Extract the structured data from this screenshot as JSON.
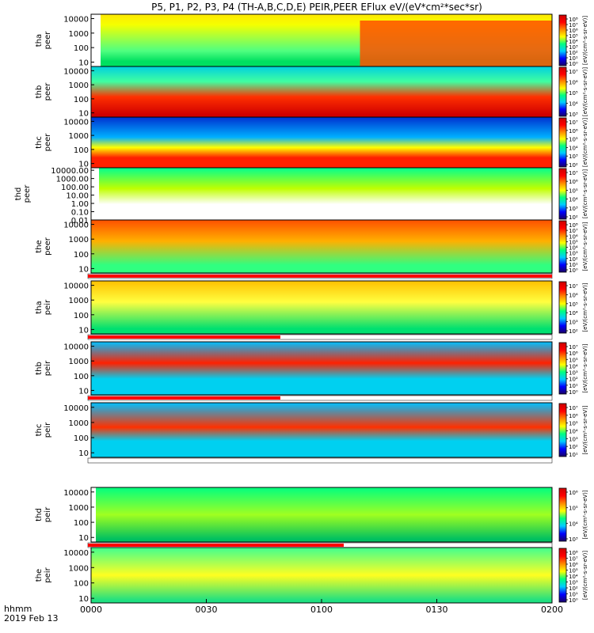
{
  "chart_data": {
    "type": "heatmap",
    "title": "P5, P1, P2, P3, P4 (TH-A,B,C,D,E) PEIR,PEER EFlux eV/(eV*cm²*sec*sr)",
    "date": "2019 Feb 13",
    "time_axis": {
      "label": "hhmm",
      "ticks": [
        "0000",
        "0030",
        "0100",
        "0130",
        "0200"
      ],
      "range_minutes": [
        0,
        120
      ]
    },
    "colorbar_unit": "[eV/(cm²-s-sr-eV)]",
    "colormap": [
      "#1a0066",
      "#0000ff",
      "#00ccff",
      "#00ff80",
      "#ffff00",
      "#ff8800",
      "#ff0000",
      "#cc0000"
    ],
    "panels": [
      {
        "name": "tha peer",
        "ylabel": [
          "tha",
          "peer"
        ],
        "yticks": [
          "10000",
          "1000",
          "100",
          "10"
        ],
        "yrange": [
          5,
          20000
        ],
        "zticks": [
          "10⁸",
          "10⁷",
          "10⁶",
          "10⁵",
          "10⁴",
          "10³",
          "10²",
          "10¹",
          "10⁰"
        ]
      },
      {
        "name": "thb peer",
        "ylabel": [
          "thb",
          "peer"
        ],
        "yticks": [
          "10000",
          "1000",
          "100",
          "10"
        ],
        "yrange": [
          5,
          20000
        ],
        "zticks": [
          "10⁷",
          "10⁶",
          "10⁵",
          "10⁴",
          "10³"
        ]
      },
      {
        "name": "thc peer",
        "ylabel": [
          "thc",
          "peer"
        ],
        "yticks": [
          "10000",
          "1000",
          "100",
          "10"
        ],
        "yrange": [
          5,
          20000
        ],
        "zticks": [
          "10⁷",
          "10⁶",
          "10⁵",
          "10⁴",
          "10³",
          "10²"
        ]
      },
      {
        "name": "thd peer",
        "ylabel": [
          "thd",
          "peer"
        ],
        "yticks": [
          "10000.00",
          "1000.00",
          "100.00",
          "10.00",
          "1.00",
          "0.10",
          "0.01"
        ],
        "yrange": [
          0.01,
          20000
        ],
        "zticks": [
          "10⁷",
          "10⁶",
          "10⁵",
          "10⁴",
          "10³",
          "10²"
        ]
      },
      {
        "name": "the peer",
        "ylabel": [
          "the",
          "peer"
        ],
        "yticks": [
          "10000",
          "1000",
          "100",
          "10"
        ],
        "yrange": [
          5,
          20000
        ],
        "zticks": [
          "10⁸",
          "10⁷",
          "10⁶",
          "10⁵",
          "10⁴",
          "10³",
          "10²",
          "10¹",
          "10⁰"
        ]
      },
      {
        "name": "tha peir",
        "ylabel": [
          "tha",
          "peir"
        ],
        "yticks": [
          "10000",
          "1000",
          "100",
          "10"
        ],
        "yrange": [
          5,
          20000
        ],
        "zticks": [
          "10⁷",
          "10⁶",
          "10⁵",
          "10⁴",
          "10³",
          "10²"
        ]
      },
      {
        "name": "thb peir",
        "ylabel": [
          "thb",
          "peir"
        ],
        "yticks": [
          "10000",
          "1000",
          "100",
          "10"
        ],
        "yrange": [
          5,
          20000
        ],
        "zticks": [
          "10⁷",
          "10⁶",
          "10⁵",
          "10⁴",
          "10³",
          "10²",
          "10¹",
          "10⁰"
        ]
      },
      {
        "name": "thc peir",
        "ylabel": [
          "thc",
          "peir"
        ],
        "yticks": [
          "10000",
          "1000",
          "100",
          "10"
        ],
        "yrange": [
          5,
          20000
        ],
        "zticks": [
          "10⁷",
          "10⁶",
          "10⁵",
          "10⁴",
          "10³",
          "10²",
          "10¹"
        ]
      },
      {
        "name": "thd peir",
        "ylabel": [
          "thd",
          "peir"
        ],
        "yticks": [
          "10000",
          "1000",
          "100",
          "10"
        ],
        "yrange": [
          5,
          20000
        ],
        "zticks": [
          "10⁶",
          "10⁵",
          "10⁴",
          "10³"
        ]
      },
      {
        "name": "the peir",
        "ylabel": [
          "the",
          "peir"
        ],
        "yticks": [
          "10000",
          "1000",
          "100",
          "10"
        ],
        "yrange": [
          5,
          20000
        ],
        "zticks": [
          "10⁸",
          "10⁷",
          "10⁶",
          "10⁵",
          "10⁴",
          "10³",
          "10²",
          "10¹",
          "10⁰"
        ]
      }
    ]
  }
}
